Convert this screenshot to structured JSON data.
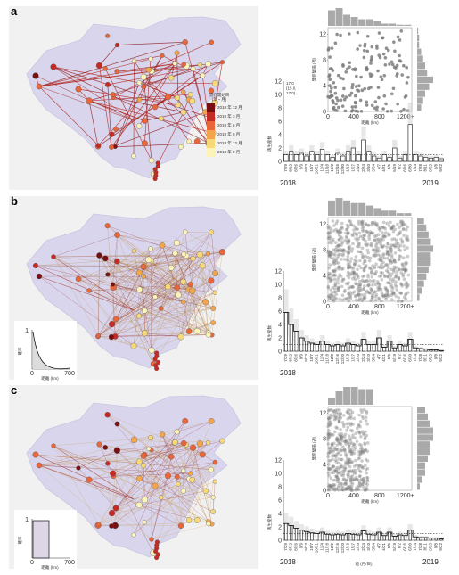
{
  "figure": {
    "panels": [
      {
        "letter": "a",
        "legend": {
          "title": "流行開始日",
          "subtitle": "(年・月)",
          "entries": [
            {
              "label": "2018 年 12 月",
              "color": "#7a0f12"
            },
            {
              "label": "2019 年 3 月",
              "color": "#c62a24"
            },
            {
              "label": "2019 年 6 月",
              "color": "#e9653a"
            },
            {
              "label": "2019 年 9 月",
              "color": "#f3a54b"
            },
            {
              "label": "2018 年 12 月",
              "color": "#f8d979"
            },
            {
              "label": "2018 年 9 月",
              "color": "#fbf3b8"
            }
          ]
        },
        "ts_annotation": [
          "17.0",
          "(15.0,",
          "17.0)"
        ],
        "year_left": "2018",
        "year_right": "2019",
        "x_unit": ""
      },
      {
        "letter": "b",
        "inset": {
          "ylabel": "確率",
          "xlabel": "距離 (km)",
          "ytop": "1",
          "x0": "0",
          "x1": "700"
        },
        "year_left": "2018",
        "year_right": "",
        "x_unit": ""
      },
      {
        "letter": "c",
        "inset": {
          "ylabel": "確率",
          "xlabel": "距離 (km)",
          "ytop": "1",
          "x0": "0",
          "x1": "700"
        },
        "year_left": "2018",
        "year_right": "2019",
        "x_unit": "週 (月/日)"
      }
    ],
    "scatter_axes": {
      "ylabel": "発症間隔 (週)",
      "xlabel": "距離 (km)",
      "yticks": [
        "12",
        "8",
        "4",
        "0"
      ],
      "xticks": [
        "0",
        "400",
        "800",
        "1200+"
      ]
    },
    "ts_axes": {
      "ylabel": "再生産数",
      "yticks": [
        "12",
        "10",
        "8",
        "6",
        "4",
        "2",
        "0"
      ],
      "xticks": [
        "7/29",
        "8/12",
        "8/26",
        "9/9",
        "9/23",
        "10/7",
        "10/21",
        "11/4",
        "11/18",
        "12/2",
        "12/16",
        "12/30",
        "1/13",
        "1/27",
        "2/10",
        "2/24",
        "3/10",
        "3/24",
        "4/7",
        "4/21",
        "5/5",
        "5/19",
        "6/2",
        "6/16",
        "6/30",
        "7/14",
        "7/28",
        "8/11",
        "8/25",
        "9/8",
        "9/22"
      ]
    }
  },
  "chart_data": [
    {
      "type": "bar",
      "panel": "a",
      "ylabel": "再生産数",
      "ylim": [
        0,
        12
      ],
      "reference_line": 1,
      "bar_width": 0.8,
      "categories": [
        "7/29",
        "8/12",
        "8/26",
        "9/9",
        "9/23",
        "10/7",
        "10/21",
        "11/4",
        "11/18",
        "12/2",
        "12/16",
        "12/30",
        "1/13",
        "1/27",
        "2/10",
        "2/24",
        "3/10",
        "3/24",
        "4/7",
        "4/21",
        "5/5",
        "5/19",
        "6/2",
        "6/16",
        "6/30",
        "7/14",
        "7/28",
        "8/11",
        "8/25",
        "9/8",
        "9/22"
      ],
      "series": [
        {
          "name": "",
          "values": [
            1,
            1.5,
            1,
            1.2,
            0.8,
            1.5,
            1,
            1.8,
            1,
            0.6,
            1.2,
            0.8,
            1.5,
            2,
            1,
            3.2,
            1.5,
            0.8,
            0.5,
            1,
            0.6,
            2,
            0.5,
            1,
            5.5,
            1,
            0.8,
            0.6,
            0.5,
            0.6,
            0.4
          ]
        }
      ],
      "annotation_value": 17.0,
      "annotation_ci": [
        15.0,
        17.0
      ]
    },
    {
      "type": "bar",
      "panel": "b",
      "ylabel": "再生産数",
      "ylim": [
        0,
        12
      ],
      "reference_line": 1,
      "bar_width": 0.55,
      "categories": [
        "7/29",
        "8/12",
        "8/26",
        "9/9",
        "9/23",
        "10/7",
        "10/21",
        "11/4",
        "11/18",
        "12/2",
        "12/16",
        "12/30",
        "1/13",
        "1/27",
        "2/10",
        "2/24",
        "3/10",
        "3/24",
        "4/7",
        "4/21",
        "5/5",
        "5/19",
        "6/2",
        "6/16",
        "6/30",
        "7/14",
        "7/28",
        "8/11",
        "8/25",
        "9/8",
        "9/22"
      ],
      "series": [
        {
          "name": "",
          "values": [
            5.8,
            4,
            3,
            2,
            1.5,
            1.2,
            1,
            1.5,
            1,
            0.8,
            1,
            0.8,
            1.2,
            1,
            0.8,
            1.8,
            1,
            1,
            2,
            0.6,
            1.5,
            0.5,
            1,
            0.8,
            1.8,
            0.5,
            0.4,
            0.3,
            0.2,
            0.2,
            0.1
          ]
        }
      ]
    },
    {
      "type": "bar",
      "panel": "c",
      "ylabel": "再生産数",
      "xlabel": "週 (月/日)",
      "ylim": [
        0,
        12
      ],
      "reference_line": 1,
      "bar_width": 0.45,
      "categories": [
        "7/29",
        "8/12",
        "8/26",
        "9/9",
        "9/23",
        "10/7",
        "10/21",
        "11/4",
        "11/18",
        "12/2",
        "12/16",
        "12/30",
        "1/13",
        "1/27",
        "2/10",
        "2/24",
        "3/10",
        "3/24",
        "4/7",
        "4/21",
        "5/5",
        "5/19",
        "6/2",
        "6/16",
        "6/30",
        "7/14",
        "7/28",
        "8/11",
        "8/25",
        "9/8",
        "9/22"
      ],
      "series": [
        {
          "name": "",
          "values": [
            2.5,
            2.2,
            1.8,
            1.5,
            1.3,
            1.1,
            1,
            1.2,
            0.9,
            0.8,
            0.9,
            0.8,
            1,
            0.9,
            0.8,
            1.4,
            0.9,
            0.8,
            1.2,
            0.7,
            1.2,
            0.6,
            0.8,
            0.7,
            1.5,
            0.5,
            0.4,
            0.4,
            0.3,
            0.3,
            0.2
          ]
        }
      ]
    },
    {
      "type": "scatter",
      "panel": "a",
      "xlabel": "距離 (km)",
      "ylabel": "発症間隔 (週)",
      "xlim": [
        0,
        1300
      ],
      "ylim": [
        0,
        13
      ],
      "top_hist": [
        7,
        8,
        5,
        4,
        3,
        3,
        2,
        1,
        1,
        0.5,
        0.5
      ],
      "right_hist": [
        2,
        3,
        4,
        6,
        8,
        5,
        4,
        3,
        2,
        1,
        1,
        0.5
      ]
    },
    {
      "type": "scatter",
      "panel": "b",
      "xlabel": "距離 (km)",
      "ylabel": "発症間隔 (週)",
      "xlim": [
        0,
        1300
      ],
      "ylim": [
        0,
        13
      ],
      "top_hist": [
        6,
        7,
        6,
        5,
        5,
        4,
        3,
        2,
        2,
        1,
        1
      ],
      "right_hist": [
        1,
        2,
        3,
        4,
        5,
        6,
        6,
        7,
        6,
        5,
        4,
        3
      ]
    },
    {
      "type": "scatter",
      "panel": "c",
      "xlabel": "距離 (km)",
      "ylabel": "発症間隔 (週)",
      "xlim": [
        0,
        1300
      ],
      "ylim": [
        0,
        13
      ],
      "top_hist": [
        3,
        6,
        8,
        8,
        7,
        7,
        0,
        0,
        0,
        0,
        0
      ],
      "right_hist": [
        1,
        2,
        3,
        3,
        4,
        5,
        5,
        6,
        6,
        5,
        4,
        3
      ]
    }
  ]
}
